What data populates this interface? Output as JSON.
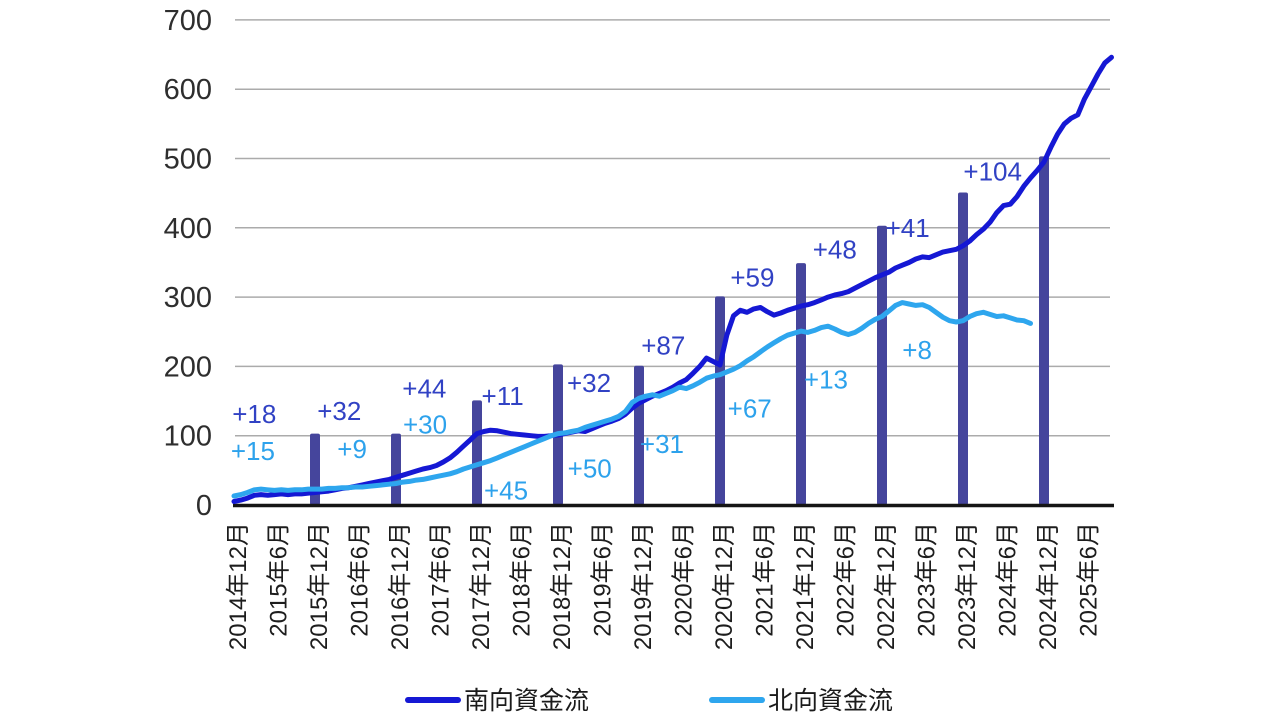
{
  "chart_data": {
    "type": "line",
    "ylim": [
      0,
      700
    ],
    "yticks": [
      0,
      100,
      200,
      300,
      400,
      500,
      600,
      700
    ],
    "grid": "horizontal-only",
    "x_axis": {
      "unit": "months-since-2014-12",
      "tick_interval_months": 6,
      "tick_labels": [
        "2014年12月",
        "2015年6月",
        "2015年12月",
        "2016年6月",
        "2016年12月",
        "2017年6月",
        "2017年12月",
        "2018年6月",
        "2018年12月",
        "2019年6月",
        "2019年12月",
        "2020年6月",
        "2020年12月",
        "2021年6月",
        "2021年12月",
        "2022年6月",
        "2022年12月",
        "2023年6月",
        "2023年12月",
        "2024年6月",
        "2024年12月",
        "2025年6月"
      ]
    },
    "series": [
      {
        "name": "南向資金流",
        "color": "#1518d4",
        "points": [
          [
            0,
            5
          ],
          [
            1,
            7
          ],
          [
            2,
            10
          ],
          [
            3,
            14
          ],
          [
            4,
            15
          ],
          [
            5,
            14
          ],
          [
            6,
            15
          ],
          [
            7,
            16
          ],
          [
            8,
            15
          ],
          [
            9,
            16
          ],
          [
            10,
            16
          ],
          [
            11,
            17
          ],
          [
            12,
            18
          ],
          [
            13,
            19
          ],
          [
            14,
            20
          ],
          [
            15,
            22
          ],
          [
            16,
            24
          ],
          [
            17,
            25
          ],
          [
            18,
            27
          ],
          [
            19,
            29
          ],
          [
            20,
            31
          ],
          [
            21,
            33
          ],
          [
            22,
            35
          ],
          [
            23,
            37
          ],
          [
            24,
            40
          ],
          [
            25,
            43
          ],
          [
            26,
            46
          ],
          [
            27,
            49
          ],
          [
            28,
            52
          ],
          [
            29,
            54
          ],
          [
            30,
            57
          ],
          [
            31,
            62
          ],
          [
            32,
            68
          ],
          [
            33,
            76
          ],
          [
            34,
            85
          ],
          [
            35,
            94
          ],
          [
            36,
            103
          ],
          [
            37,
            106
          ],
          [
            38,
            108
          ],
          [
            39,
            107
          ],
          [
            40,
            105
          ],
          [
            41,
            103
          ],
          [
            42,
            102
          ],
          [
            43,
            101
          ],
          [
            44,
            100
          ],
          [
            45,
            99
          ],
          [
            46,
            99
          ],
          [
            47,
            100
          ],
          [
            48,
            101
          ],
          [
            49,
            103
          ],
          [
            50,
            105
          ],
          [
            51,
            107
          ],
          [
            52,
            106
          ],
          [
            53,
            110
          ],
          [
            54,
            114
          ],
          [
            55,
            118
          ],
          [
            56,
            121
          ],
          [
            57,
            125
          ],
          [
            58,
            131
          ],
          [
            59,
            140
          ],
          [
            60,
            147
          ],
          [
            61,
            152
          ],
          [
            62,
            157
          ],
          [
            63,
            161
          ],
          [
            64,
            165
          ],
          [
            65,
            170
          ],
          [
            66,
            176
          ],
          [
            67,
            181
          ],
          [
            68,
            190
          ],
          [
            69,
            200
          ],
          [
            70,
            212
          ],
          [
            71,
            207
          ],
          [
            72,
            202
          ],
          [
            73,
            245
          ],
          [
            74,
            273
          ],
          [
            75,
            281
          ],
          [
            76,
            278
          ],
          [
            77,
            283
          ],
          [
            78,
            285
          ],
          [
            79,
            279
          ],
          [
            80,
            274
          ],
          [
            81,
            277
          ],
          [
            82,
            281
          ],
          [
            83,
            284
          ],
          [
            84,
            287
          ],
          [
            85,
            289
          ],
          [
            86,
            292
          ],
          [
            87,
            296
          ],
          [
            88,
            300
          ],
          [
            89,
            303
          ],
          [
            90,
            305
          ],
          [
            91,
            308
          ],
          [
            92,
            313
          ],
          [
            93,
            318
          ],
          [
            94,
            323
          ],
          [
            95,
            328
          ],
          [
            96,
            332
          ],
          [
            97,
            336
          ],
          [
            98,
            342
          ],
          [
            99,
            346
          ],
          [
            100,
            350
          ],
          [
            101,
            355
          ],
          [
            102,
            358
          ],
          [
            103,
            357
          ],
          [
            104,
            361
          ],
          [
            105,
            365
          ],
          [
            106,
            367
          ],
          [
            107,
            369
          ],
          [
            108,
            374
          ],
          [
            109,
            381
          ],
          [
            110,
            390
          ],
          [
            111,
            398
          ],
          [
            112,
            408
          ],
          [
            113,
            422
          ],
          [
            114,
            432
          ],
          [
            115,
            434
          ],
          [
            116,
            445
          ],
          [
            117,
            460
          ],
          [
            118,
            472
          ],
          [
            119,
            483
          ],
          [
            120,
            495
          ],
          [
            121,
            516
          ],
          [
            122,
            535
          ],
          [
            123,
            550
          ],
          [
            124,
            558
          ],
          [
            125,
            563
          ],
          [
            126,
            586
          ],
          [
            127,
            604
          ],
          [
            128,
            622
          ],
          [
            129,
            638
          ],
          [
            130,
            646
          ]
        ]
      },
      {
        "name": "北向資金流",
        "color": "#2ea6ee",
        "points": [
          [
            0,
            13
          ],
          [
            1,
            15
          ],
          [
            2,
            18
          ],
          [
            3,
            22
          ],
          [
            4,
            23
          ],
          [
            5,
            22
          ],
          [
            6,
            21
          ],
          [
            7,
            22
          ],
          [
            8,
            21
          ],
          [
            9,
            22
          ],
          [
            10,
            22
          ],
          [
            11,
            23
          ],
          [
            12,
            23
          ],
          [
            13,
            23
          ],
          [
            14,
            24
          ],
          [
            15,
            24
          ],
          [
            16,
            25
          ],
          [
            17,
            25
          ],
          [
            18,
            26
          ],
          [
            19,
            26
          ],
          [
            20,
            27
          ],
          [
            21,
            28
          ],
          [
            22,
            29
          ],
          [
            23,
            30
          ],
          [
            24,
            31
          ],
          [
            25,
            33
          ],
          [
            26,
            34
          ],
          [
            27,
            36
          ],
          [
            28,
            37
          ],
          [
            29,
            39
          ],
          [
            30,
            41
          ],
          [
            31,
            43
          ],
          [
            32,
            45
          ],
          [
            33,
            48
          ],
          [
            34,
            52
          ],
          [
            35,
            55
          ],
          [
            36,
            58
          ],
          [
            37,
            61
          ],
          [
            38,
            64
          ],
          [
            39,
            68
          ],
          [
            40,
            72
          ],
          [
            41,
            76
          ],
          [
            42,
            80
          ],
          [
            43,
            84
          ],
          [
            44,
            88
          ],
          [
            45,
            92
          ],
          [
            46,
            96
          ],
          [
            47,
            100
          ],
          [
            48,
            103
          ],
          [
            49,
            104
          ],
          [
            50,
            106
          ],
          [
            51,
            108
          ],
          [
            52,
            112
          ],
          [
            53,
            115
          ],
          [
            54,
            118
          ],
          [
            55,
            121
          ],
          [
            56,
            124
          ],
          [
            57,
            128
          ],
          [
            58,
            135
          ],
          [
            59,
            148
          ],
          [
            60,
            154
          ],
          [
            61,
            157
          ],
          [
            62,
            159
          ],
          [
            63,
            157
          ],
          [
            64,
            161
          ],
          [
            65,
            165
          ],
          [
            66,
            170
          ],
          [
            67,
            168
          ],
          [
            68,
            172
          ],
          [
            69,
            177
          ],
          [
            70,
            183
          ],
          [
            71,
            186
          ],
          [
            72,
            188
          ],
          [
            73,
            192
          ],
          [
            74,
            196
          ],
          [
            75,
            201
          ],
          [
            76,
            208
          ],
          [
            77,
            214
          ],
          [
            78,
            221
          ],
          [
            79,
            228
          ],
          [
            80,
            234
          ],
          [
            81,
            240
          ],
          [
            82,
            245
          ],
          [
            83,
            248
          ],
          [
            84,
            251
          ],
          [
            85,
            249
          ],
          [
            86,
            252
          ],
          [
            87,
            256
          ],
          [
            88,
            258
          ],
          [
            89,
            254
          ],
          [
            90,
            249
          ],
          [
            91,
            246
          ],
          [
            92,
            249
          ],
          [
            93,
            255
          ],
          [
            94,
            262
          ],
          [
            95,
            268
          ],
          [
            96,
            272
          ],
          [
            97,
            280
          ],
          [
            98,
            288
          ],
          [
            99,
            292
          ],
          [
            100,
            290
          ],
          [
            101,
            288
          ],
          [
            102,
            289
          ],
          [
            103,
            285
          ],
          [
            104,
            278
          ],
          [
            105,
            271
          ],
          [
            106,
            266
          ],
          [
            107,
            264
          ],
          [
            108,
            266
          ],
          [
            109,
            272
          ],
          [
            110,
            276
          ],
          [
            111,
            278
          ],
          [
            112,
            275
          ],
          [
            113,
            272
          ],
          [
            114,
            273
          ],
          [
            115,
            270
          ],
          [
            116,
            267
          ],
          [
            117,
            266
          ],
          [
            118,
            262
          ]
        ]
      }
    ],
    "year_end_bars": {
      "color": "#45459c",
      "points": [
        [
          12,
          103
        ],
        [
          24,
          103
        ],
        [
          36,
          151
        ],
        [
          48,
          203
        ],
        [
          60,
          201
        ],
        [
          72,
          301
        ],
        [
          84,
          349
        ],
        [
          96,
          403
        ],
        [
          108,
          451
        ],
        [
          120,
          503
        ]
      ]
    },
    "annotations": [
      {
        "series": "南向資金流",
        "label": "+18",
        "t": 3.0,
        "v": 131,
        "color": "#3142c4"
      },
      {
        "series": "北向資金流",
        "label": "+15",
        "t": 2.8,
        "v": 78,
        "color": "#2da2ec"
      },
      {
        "series": "南向資金流",
        "label": "+32",
        "t": 15.6,
        "v": 136,
        "color": "#3142c4"
      },
      {
        "series": "北向資金流",
        "label": "+9",
        "t": 17.5,
        "v": 81,
        "color": "#2da2ec"
      },
      {
        "series": "南向資金流",
        "label": "+44",
        "t": 28.2,
        "v": 168,
        "color": "#3142c4"
      },
      {
        "series": "北向資金流",
        "label": "+30",
        "t": 28.3,
        "v": 116,
        "color": "#2da2ec"
      },
      {
        "series": "南向資金流",
        "label": "+11",
        "t": 39.8,
        "v": 157,
        "color": "#3142c4"
      },
      {
        "series": "北向資金流",
        "label": "+45",
        "t": 40.3,
        "v": 21,
        "color": "#2da2ec"
      },
      {
        "series": "南向資金流",
        "label": "+32",
        "t": 52.6,
        "v": 176,
        "color": "#3142c4"
      },
      {
        "series": "北向資金流",
        "label": "+50",
        "t": 52.7,
        "v": 53,
        "color": "#2da2ec"
      },
      {
        "series": "南向資金流",
        "label": "+87",
        "t": 63.6,
        "v": 230,
        "color": "#3142c4"
      },
      {
        "series": "北向資金流",
        "label": "+31",
        "t": 63.4,
        "v": 88,
        "color": "#2da2ec"
      },
      {
        "series": "南向資金流",
        "label": "+59",
        "t": 76.8,
        "v": 328,
        "color": "#3142c4"
      },
      {
        "series": "北向資金流",
        "label": "+67",
        "t": 76.4,
        "v": 139,
        "color": "#2da2ec"
      },
      {
        "series": "南向資金流",
        "label": "+48",
        "t": 89.0,
        "v": 369,
        "color": "#3142c4"
      },
      {
        "series": "北向資金流",
        "label": "+13",
        "t": 87.7,
        "v": 181,
        "color": "#2da2ec"
      },
      {
        "series": "南向資金流",
        "label": "+41",
        "t": 99.8,
        "v": 400,
        "color": "#3142c4"
      },
      {
        "series": "北向資金流",
        "label": "+8",
        "t": 101.2,
        "v": 224,
        "color": "#2da2ec"
      },
      {
        "series": "南向資金流",
        "label": "+104",
        "t": 112.4,
        "v": 481,
        "color": "#3142c4"
      }
    ],
    "legend_position": "bottom"
  },
  "legend": {
    "items": [
      {
        "label": "南向資金流",
        "color": "#1518d4"
      },
      {
        "label": "北向資金流",
        "color": "#2ea6ee"
      }
    ]
  },
  "colors": {
    "gridline": "#ababab",
    "axis": "#151515"
  }
}
